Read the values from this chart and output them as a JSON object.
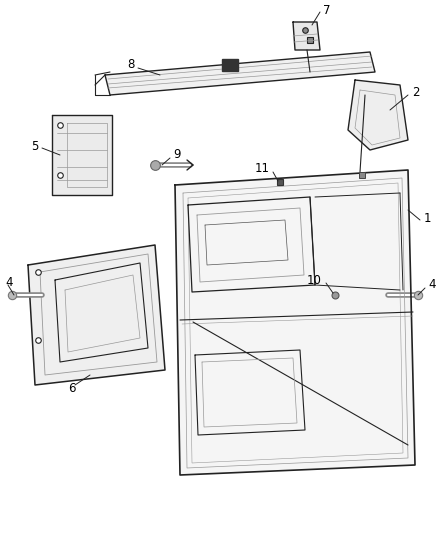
{
  "background_color": "#ffffff",
  "line_color": "#555555",
  "line_color_dark": "#222222",
  "line_color_light": "#999999",
  "label_color": "#000000",
  "label_fontsize": 8.5,
  "fig_width": 4.38,
  "fig_height": 5.33,
  "dpi": 100
}
